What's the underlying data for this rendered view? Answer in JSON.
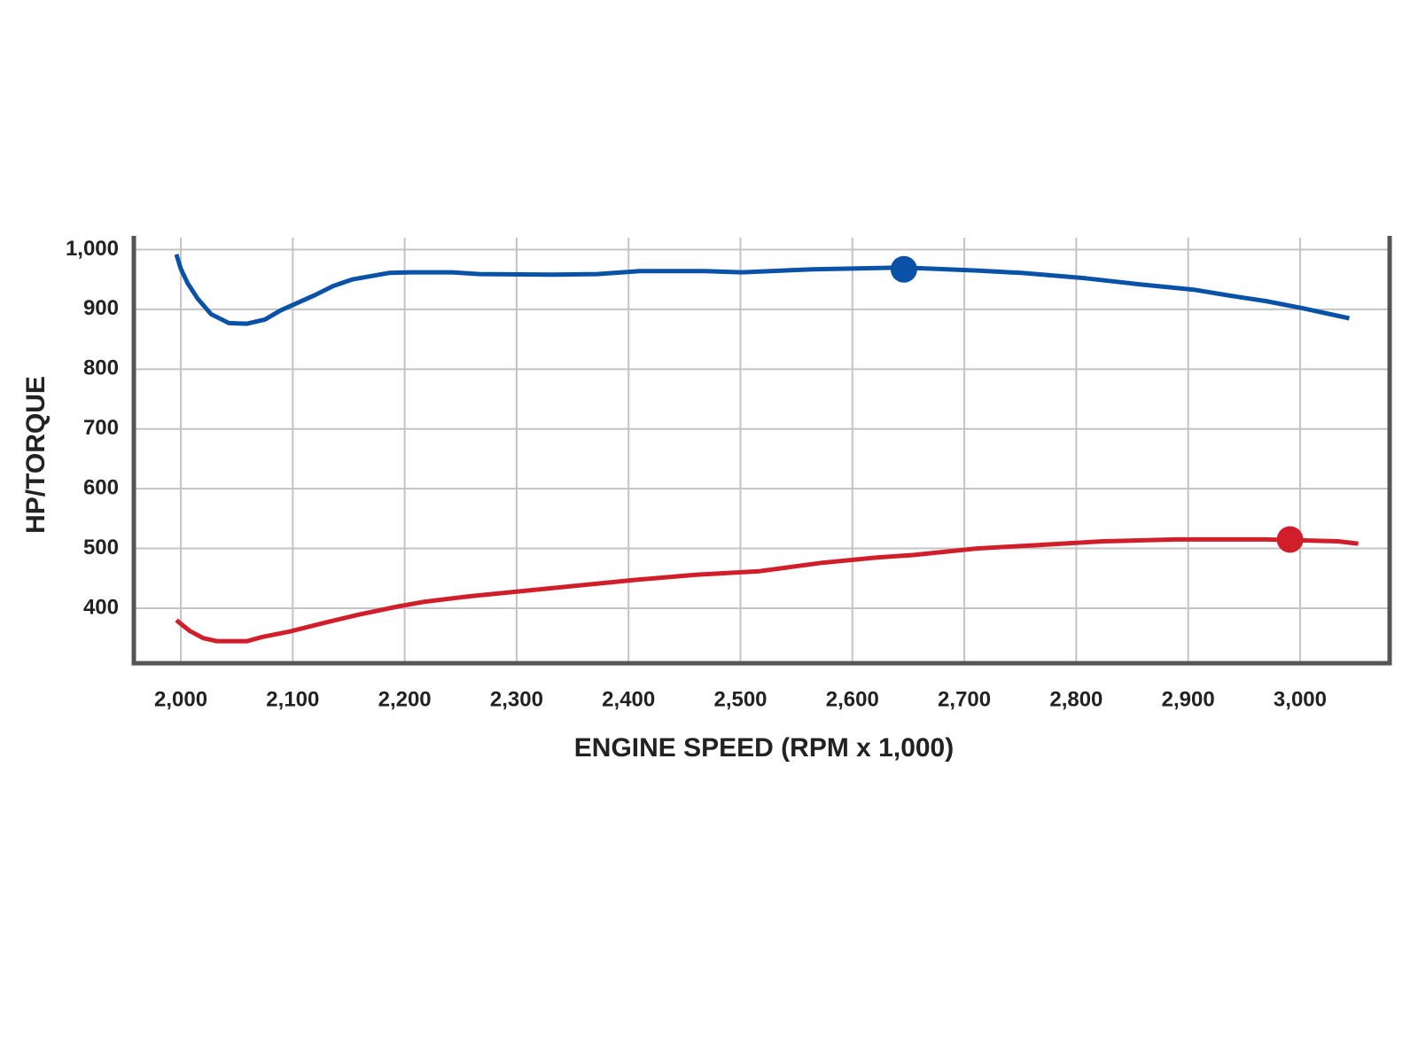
{
  "chart_data": {
    "type": "line",
    "x_label": "ENGINE SPEED (RPM x 1,000)",
    "y_label": "HP/TORQUE",
    "xlim": [
      1958,
      3080
    ],
    "ylim": [
      308,
      1020
    ],
    "grid": true,
    "xticks": [
      {
        "value": 2000,
        "label": "2,000"
      },
      {
        "value": 2100,
        "label": "2,100"
      },
      {
        "value": 2200,
        "label": "2,200"
      },
      {
        "value": 2300,
        "label": "2,300"
      },
      {
        "value": 2400,
        "label": "2,400"
      },
      {
        "value": 2500,
        "label": "2,500"
      },
      {
        "value": 2600,
        "label": "2,600"
      },
      {
        "value": 2700,
        "label": "2,700"
      },
      {
        "value": 2800,
        "label": "2,800"
      },
      {
        "value": 2900,
        "label": "2,900"
      },
      {
        "value": 3000,
        "label": "3,000"
      }
    ],
    "yticks": [
      400,
      500,
      600,
      700,
      800,
      900,
      {
        "value": 1000,
        "label": "1,000"
      }
    ],
    "series": [
      {
        "color": "#0a52a8",
        "x": [
          1996,
          2000,
          2006,
          2015,
          2027,
          2043,
          2059,
          2075,
          2089,
          2120,
          2136,
          2153,
          2186,
          2206,
          2242,
          2267,
          2331,
          2372,
          2410,
          2468,
          2501,
          2565,
          2646,
          2711,
          2751,
          2808,
          2856,
          2905,
          2937,
          2969,
          3002,
          3044
        ],
        "values": [
          992,
          968,
          944,
          918,
          892,
          877,
          876,
          883,
          898,
          924,
          939,
          950,
          961,
          962,
          962,
          959,
          958,
          959,
          964,
          964,
          962,
          967,
          970,
          965,
          961,
          952,
          942,
          933,
          923,
          914,
          902,
          885
        ]
      },
      {
        "color": "#d01f2a",
        "x": [
          1996,
          2008,
          2020,
          2032,
          2044,
          2059,
          2073,
          2097,
          2129,
          2158,
          2194,
          2218,
          2258,
          2307,
          2355,
          2404,
          2460,
          2517,
          2541,
          2573,
          2622,
          2654,
          2711,
          2759,
          2824,
          2889,
          2969,
          3034,
          3052
        ],
        "values": [
          380,
          362,
          350,
          345,
          345,
          345,
          352,
          361,
          376,
          389,
          403,
          411,
          420,
          429,
          438,
          447,
          456,
          462,
          468,
          476,
          485,
          489,
          500,
          505,
          512,
          515,
          515,
          512,
          508
        ]
      }
    ],
    "markers": [
      {
        "x": 2646,
        "y": 967,
        "color": "#0a52a8"
      },
      {
        "x": 2991,
        "y": 515,
        "color": "#d01f2a"
      }
    ]
  }
}
